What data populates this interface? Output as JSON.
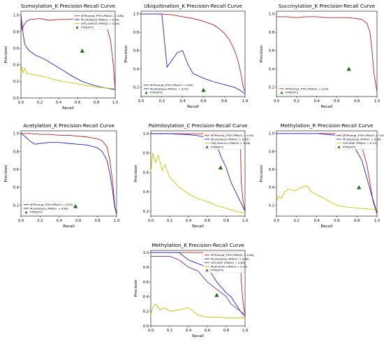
{
  "colors": {
    "red": "#b22222",
    "blue": "#2222cc",
    "yellow": "#c8c800",
    "purple": "#7a2fa8",
    "marker": "#1f6f1f"
  },
  "chart_data": [
    {
      "type": "line",
      "title": "Sumoylation_K Precision-Recall Curve",
      "xlabel": "Recall",
      "ylabel": "Precision",
      "xlim": [
        0,
        1
      ],
      "ylim": [
        0,
        1.05
      ],
      "xticks": [
        "0.0",
        "0.2",
        "0.4",
        "0.6",
        "0.8",
        "1.0"
      ],
      "yticks": [
        "0.0",
        "0.2",
        "0.4",
        "0.6",
        "0.8",
        "1.0"
      ],
      "ytick_values": [
        0,
        0.2,
        0.4,
        0.6,
        0.8,
        1.0
      ],
      "legend_position": "top-right",
      "series": [
        {
          "name": "MTPrompt_PTM (PRAUC = 0.86)",
          "color": "red",
          "x": [
            0,
            0.01,
            0.03,
            0.06,
            0.1,
            0.2,
            0.3,
            0.4,
            0.5,
            0.6,
            0.7,
            0.8,
            0.85,
            0.9,
            0.95,
            0.98,
            1.0
          ],
          "y": [
            1.0,
            0.82,
            0.88,
            0.93,
            0.95,
            0.96,
            0.94,
            0.95,
            0.95,
            0.96,
            0.97,
            0.96,
            0.95,
            0.9,
            0.7,
            0.4,
            0.1
          ]
        },
        {
          "name": "MusiteDeep (PRAUC = 0.29)",
          "color": "blue",
          "x": [
            0,
            0.01,
            0.02,
            0.04,
            0.08,
            0.15,
            0.25,
            0.35,
            0.45,
            0.55,
            0.65,
            0.75,
            0.85,
            0.95,
            1.0
          ],
          "y": [
            1.0,
            0.9,
            0.8,
            0.65,
            0.58,
            0.52,
            0.47,
            0.4,
            0.33,
            0.26,
            0.2,
            0.16,
            0.13,
            0.11,
            0.1
          ]
        },
        {
          "name": "GPS-SUMO2 (PRAUC = 0.19)",
          "color": "yellow",
          "x": [
            0,
            0.01,
            0.02,
            0.04,
            0.06,
            0.1,
            0.2,
            0.3,
            0.4,
            0.5,
            0.6,
            0.7,
            0.8,
            0.9,
            1.0
          ],
          "y": [
            0.3,
            0.38,
            0.3,
            0.36,
            0.3,
            0.29,
            0.27,
            0.24,
            0.21,
            0.19,
            0.17,
            0.15,
            0.13,
            0.12,
            0.11
          ]
        }
      ],
      "markers": [
        {
          "name": "PTMGPT2",
          "x": 0.65,
          "y": 0.57
        }
      ]
    },
    {
      "type": "line",
      "title": "Ubiquitination_K Precision-Recall Curve",
      "xlabel": "Recall",
      "ylabel": "Precision",
      "xlim": [
        0,
        1
      ],
      "ylim": [
        0.1,
        1.03
      ],
      "xticks": [
        "0.0",
        "0.2",
        "0.4",
        "0.6",
        "0.8",
        "1.0"
      ],
      "yticks": [
        "0.2",
        "0.4",
        "0.6",
        "0.8",
        "1.0"
      ],
      "ytick_values": [
        0.2,
        0.4,
        0.6,
        0.8,
        1.0
      ],
      "legend_position": "lower-left",
      "series": [
        {
          "name": "MTPrompt_PTM (PRAUC = 0.89)",
          "color": "red",
          "x": [
            0,
            0.1,
            0.2,
            0.3,
            0.4,
            0.5,
            0.6,
            0.7,
            0.75,
            0.8,
            0.85,
            0.9,
            0.93,
            0.96,
            0.98,
            1.0
          ],
          "y": [
            1.0,
            1.0,
            1.0,
            0.99,
            0.97,
            0.95,
            0.92,
            0.88,
            0.84,
            0.79,
            0.72,
            0.6,
            0.5,
            0.35,
            0.22,
            0.15
          ]
        },
        {
          "name": "MusiteDeep (PRAUC = 0.55)",
          "color": "blue",
          "x": [
            0,
            0.1,
            0.2,
            0.25,
            0.3,
            0.35,
            0.4,
            0.45,
            0.5,
            0.6,
            0.7,
            0.8,
            0.9,
            0.95,
            1.0
          ],
          "y": [
            1.0,
            1.0,
            1.0,
            0.42,
            0.5,
            0.58,
            0.6,
            0.45,
            0.35,
            0.3,
            0.26,
            0.23,
            0.2,
            0.17,
            0.13
          ]
        }
      ],
      "markers": [
        {
          "name": "PTMGPT2",
          "x": 0.6,
          "y": 0.17
        }
      ]
    },
    {
      "type": "line",
      "title": "Succinylation_K Precision-Recall Curve",
      "xlabel": "Recall",
      "ylabel": "Precision",
      "xlim": [
        0,
        1
      ],
      "ylim": [
        0.1,
        1.03
      ],
      "xticks": [
        "0.0",
        "0.2",
        "0.4",
        "0.6",
        "0.8",
        "1.0"
      ],
      "yticks": [
        "0.2",
        "0.4",
        "0.6",
        "0.8",
        "1.0"
      ],
      "ytick_values": [
        0.2,
        0.4,
        0.6,
        0.8,
        1.0
      ],
      "legend_position": "lower-left",
      "series": [
        {
          "name": "MTPrompt_PTM (PRAUC = 0.94)",
          "color": "red",
          "x": [
            0,
            0.1,
            0.2,
            0.3,
            0.4,
            0.5,
            0.6,
            0.7,
            0.8,
            0.85,
            0.9,
            0.93,
            0.95,
            0.97,
            1.0
          ],
          "y": [
            0.97,
            0.97,
            0.96,
            0.97,
            0.97,
            0.96,
            0.96,
            0.96,
            0.95,
            0.94,
            0.9,
            0.8,
            0.6,
            0.35,
            0.15
          ]
        }
      ],
      "markers": [
        {
          "name": "PTMGPT2",
          "x": 0.72,
          "y": 0.4
        }
      ]
    },
    {
      "type": "line",
      "title": "Acetylation_K Precision-Recall Curve",
      "xlabel": "Recall",
      "ylabel": "Precision",
      "xlim": [
        0,
        1
      ],
      "ylim": [
        0.08,
        1.03
      ],
      "xticks": [
        "0.0",
        "0.2",
        "0.4",
        "0.6",
        "0.8",
        "1.0"
      ],
      "yticks": [
        "0.2",
        "0.4",
        "0.6",
        "0.8",
        "1.0"
      ],
      "ytick_values": [
        0.2,
        0.4,
        0.6,
        0.8,
        1.0
      ],
      "legend_position": "lower-left",
      "series": [
        {
          "name": "MTPrompt_PTM (PRAUC = 0.95)",
          "color": "red",
          "x": [
            0,
            0.1,
            0.2,
            0.3,
            0.4,
            0.5,
            0.6,
            0.7,
            0.8,
            0.85,
            0.9,
            0.93,
            0.96,
            0.98,
            1.0
          ],
          "y": [
            1.0,
            1.0,
            0.99,
            0.99,
            0.98,
            0.98,
            0.97,
            0.96,
            0.94,
            0.92,
            0.85,
            0.7,
            0.45,
            0.2,
            0.1
          ]
        },
        {
          "name": "MusiteDeep (PRAUC = 0.85)",
          "color": "blue",
          "x": [
            0,
            0.05,
            0.1,
            0.15,
            0.2,
            0.3,
            0.4,
            0.5,
            0.6,
            0.7,
            0.8,
            0.85,
            0.9,
            0.93,
            0.96,
            0.98,
            1.0
          ],
          "y": [
            1.0,
            0.96,
            0.91,
            0.88,
            0.89,
            0.9,
            0.9,
            0.89,
            0.88,
            0.87,
            0.84,
            0.8,
            0.7,
            0.55,
            0.35,
            0.18,
            0.1
          ]
        }
      ],
      "markers": [
        {
          "name": "PTMGPT2",
          "x": 0.57,
          "y": 0.19
        }
      ]
    },
    {
      "type": "line",
      "title": "Palmitoylation_C Precision-Recall Curve",
      "xlabel": "Recall",
      "ylabel": "Precision",
      "xlim": [
        0,
        1
      ],
      "ylim": [
        0.15,
        1.03
      ],
      "xticks": [
        "0.0",
        "0.2",
        "0.4",
        "0.6",
        "0.8",
        "1.0"
      ],
      "yticks": [
        "0.2",
        "0.4",
        "0.6",
        "0.8",
        "1.0"
      ],
      "ytick_values": [
        0.2,
        0.4,
        0.6,
        0.8,
        1.0
      ],
      "legend_position": "top-right",
      "series": [
        {
          "name": "MTPrompt_PTM (PRAUC = 0.95)",
          "color": "red",
          "x": [
            0,
            0.2,
            0.4,
            0.6,
            0.8,
            0.9,
            0.93,
            0.95,
            0.96,
            0.98,
            1.0
          ],
          "y": [
            1.0,
            1.0,
            1.0,
            1.0,
            1.0,
            1.0,
            0.99,
            0.9,
            0.5,
            0.3,
            0.2
          ]
        },
        {
          "name": "MusiteDeep (PRAUC = 0.89)",
          "color": "blue",
          "x": [
            0,
            0.2,
            0.4,
            0.5,
            0.6,
            0.7,
            0.75,
            0.8,
            0.85,
            0.9,
            0.95,
            1.0
          ],
          "y": [
            1.0,
            1.0,
            0.99,
            0.98,
            0.96,
            0.88,
            0.75,
            0.65,
            0.5,
            0.4,
            0.3,
            0.2
          ]
        },
        {
          "name": "CSS-Palm4.0 (PRAUC = 0.36)",
          "color": "yellow",
          "x": [
            0,
            0.02,
            0.05,
            0.08,
            0.12,
            0.15,
            0.2,
            0.3,
            0.4,
            0.5,
            0.6,
            0.7,
            0.8,
            0.9,
            1.0
          ],
          "y": [
            0.6,
            0.8,
            0.7,
            0.78,
            0.62,
            0.68,
            0.55,
            0.45,
            0.38,
            0.33,
            0.3,
            0.26,
            0.23,
            0.2,
            0.18
          ]
        }
      ],
      "markers": [
        {
          "name": "PTMGPT2",
          "x": 0.74,
          "y": 0.65
        }
      ]
    },
    {
      "type": "line",
      "title": "Methylation_R Precision-Recall Curve",
      "xlabel": "Recall",
      "ylabel": "Precision",
      "xlim": [
        0,
        1
      ],
      "ylim": [
        0.08,
        1.03
      ],
      "xticks": [
        "0.0",
        "0.2",
        "0.4",
        "0.6",
        "0.8",
        "1.0"
      ],
      "yticks": [
        "0.2",
        "0.4",
        "0.6",
        "0.8",
        "1.0"
      ],
      "ytick_values": [
        0.2,
        0.4,
        0.6,
        0.8,
        1.0
      ],
      "legend_position": "top-right",
      "series": [
        {
          "name": "MTPrompt_PTM (PRAUC = 0.92)",
          "color": "red",
          "x": [
            0,
            0.2,
            0.4,
            0.6,
            0.7,
            0.8,
            0.85,
            0.9,
            0.93,
            0.96,
            1.0
          ],
          "y": [
            1.0,
            1.0,
            1.0,
            1.0,
            0.99,
            0.95,
            0.85,
            0.65,
            0.45,
            0.25,
            0.1
          ]
        },
        {
          "name": "MusiteDeep (PRAUC = 0.86)",
          "color": "blue",
          "x": [
            0,
            0.2,
            0.4,
            0.6,
            0.7,
            0.75,
            0.8,
            0.85,
            0.9,
            0.95,
            1.0
          ],
          "y": [
            1.0,
            1.0,
            1.0,
            0.98,
            0.95,
            0.9,
            0.8,
            0.7,
            0.5,
            0.3,
            0.12
          ]
        },
        {
          "name": "GSP-MSP (PRAUC = 0.23)",
          "color": "yellow",
          "x": [
            0,
            0.02,
            0.05,
            0.08,
            0.12,
            0.18,
            0.25,
            0.3,
            0.35,
            0.4,
            0.5,
            0.6,
            0.7,
            0.8,
            0.9,
            1.0
          ],
          "y": [
            0.25,
            0.3,
            0.28,
            0.35,
            0.38,
            0.36,
            0.4,
            0.42,
            0.35,
            0.32,
            0.26,
            0.2,
            0.18,
            0.17,
            0.16,
            0.15
          ]
        }
      ],
      "markers": [
        {
          "name": "PTMGPT2",
          "x": 0.82,
          "y": 0.4
        }
      ]
    },
    {
      "type": "line",
      "title": "Methylation_K Precision-Recall Curve",
      "xlabel": "Recall",
      "ylabel": "Precision",
      "xlim": [
        0,
        1
      ],
      "ylim": [
        0.0,
        1.03
      ],
      "xticks": [
        "0.0",
        "0.2",
        "0.4",
        "0.6",
        "0.8",
        "1.0"
      ],
      "yticks": [
        "0.0",
        "0.2",
        "0.4",
        "0.6",
        "0.8",
        "1.0"
      ],
      "ytick_values": [
        0,
        0.2,
        0.4,
        0.6,
        0.8,
        1.0
      ],
      "legend_position": "top-right",
      "series": [
        {
          "name": "MTPrompt_PTM (PRAUC = 0.96)",
          "color": "red",
          "x": [
            0,
            0.2,
            0.4,
            0.6,
            0.8,
            0.9,
            0.95,
            0.96,
            0.98,
            1.0
          ],
          "y": [
            1.0,
            1.0,
            1.0,
            1.0,
            1.0,
            1.0,
            0.98,
            0.6,
            0.3,
            0.15
          ]
        },
        {
          "name": "MusiteDeep (PRAUC = 0.86)",
          "color": "blue",
          "x": [
            0,
            0.2,
            0.3,
            0.4,
            0.5,
            0.6,
            0.65,
            0.7,
            0.8,
            0.85,
            0.9,
            0.95,
            1.0
          ],
          "y": [
            1.0,
            1.0,
            1.0,
            0.9,
            0.85,
            0.8,
            0.7,
            0.6,
            0.45,
            0.4,
            0.3,
            0.2,
            0.15
          ]
        },
        {
          "name": "GSP-MSP (PRAUC = 0.69)",
          "color": "purple",
          "x": [
            0,
            0.1,
            0.2,
            0.3,
            0.35,
            0.4,
            0.5,
            0.6,
            0.7,
            0.8,
            0.85,
            0.9,
            0.95,
            1.0
          ],
          "y": [
            0.95,
            0.95,
            0.95,
            0.9,
            0.85,
            0.8,
            0.75,
            0.6,
            0.5,
            0.4,
            0.3,
            0.25,
            0.2,
            0.12
          ]
        },
        {
          "name": "MethylSite (PRAUC = 0.19)",
          "color": "yellow",
          "x": [
            0,
            0.02,
            0.05,
            0.1,
            0.15,
            0.2,
            0.3,
            0.4,
            0.5,
            0.6,
            0.7,
            0.8,
            0.9,
            1.0
          ],
          "y": [
            0.15,
            0.25,
            0.3,
            0.22,
            0.25,
            0.2,
            0.22,
            0.25,
            0.15,
            0.12,
            0.12,
            0.11,
            0.11,
            0.11
          ]
        }
      ],
      "markers": [
        {
          "name": "PTMGPT2",
          "x": 0.7,
          "y": 0.42
        }
      ]
    }
  ]
}
